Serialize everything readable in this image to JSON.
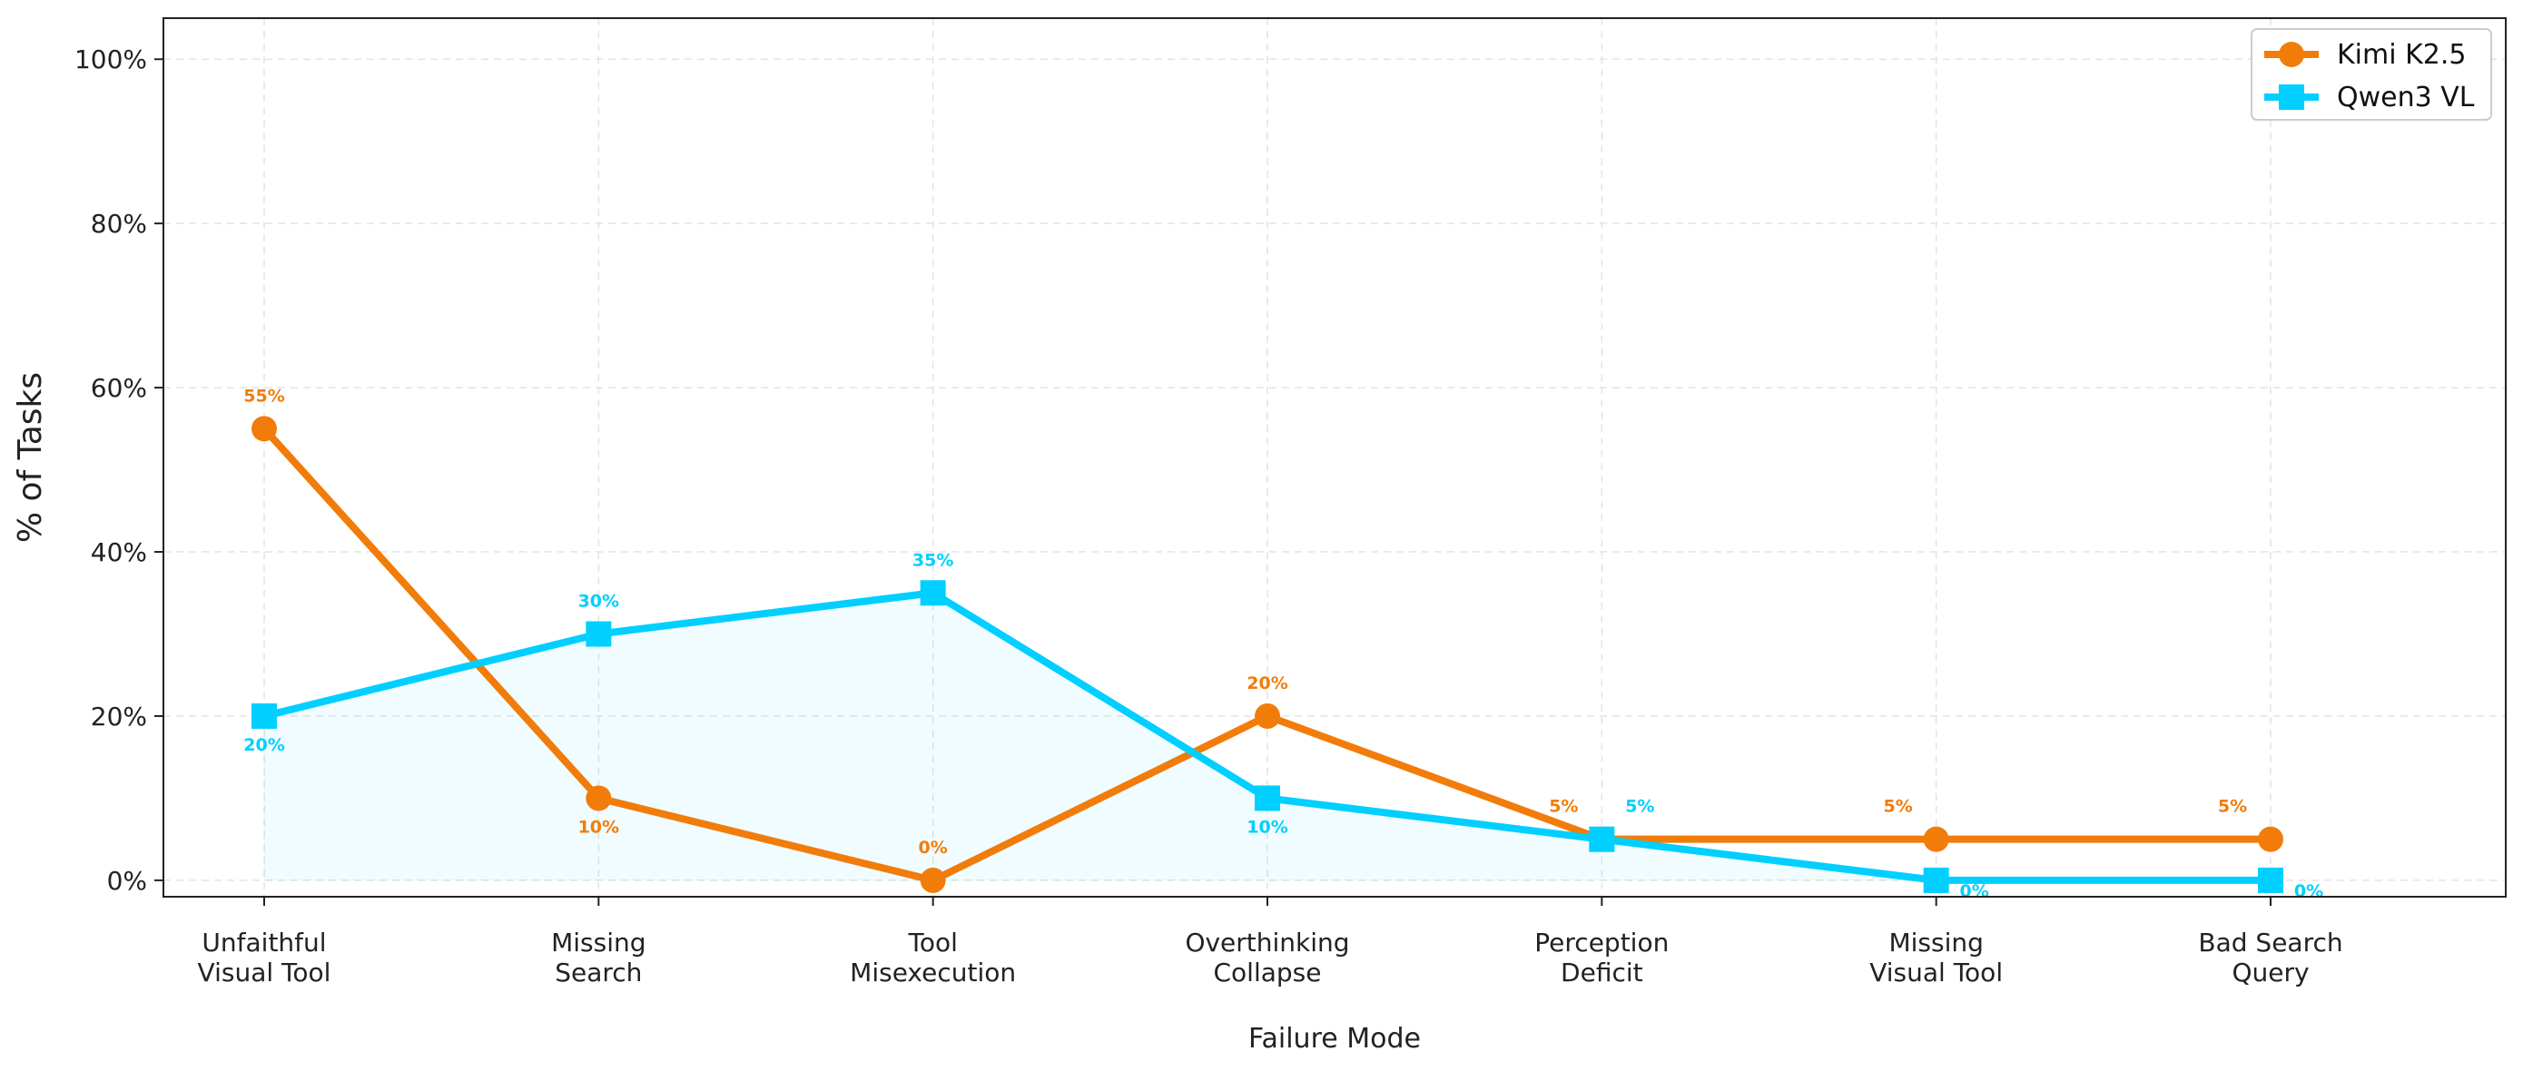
{
  "chart_data": {
    "type": "line",
    "title": "",
    "xlabel": "Failure Mode",
    "ylabel": "% of Tasks",
    "ylim": [
      -2,
      105
    ],
    "yticks": [
      0,
      20,
      40,
      60,
      80,
      100
    ],
    "ytick_labels": [
      "0%",
      "20%",
      "40%",
      "60%",
      "80%",
      "100%"
    ],
    "grid": true,
    "legend_position": "top-right",
    "categories": [
      [
        "Unfaithful",
        "Visual Tool"
      ],
      [
        "Missing",
        "Search"
      ],
      [
        "Tool",
        "Misexecution"
      ],
      [
        "Overthinking",
        "Collapse"
      ],
      [
        "Perception",
        "Deficit"
      ],
      [
        "Missing",
        "Visual Tool"
      ],
      [
        "Bad Search",
        "Query"
      ]
    ],
    "series": [
      {
        "name": "Kimi K2.5",
        "color": "#f27c0a",
        "marker": "circle",
        "values": [
          55,
          10,
          0,
          20,
          5,
          5,
          5
        ],
        "labels": [
          "55%",
          "10%",
          "0%",
          "20%",
          "5%",
          "5%",
          "5%"
        ]
      },
      {
        "name": "Qwen3 VL",
        "color": "#00cfff",
        "marker": "square",
        "values": [
          20,
          30,
          35,
          10,
          5,
          0,
          0
        ],
        "labels": [
          "20%",
          "30%",
          "35%",
          "10%",
          "5%",
          "0%",
          "0%"
        ]
      }
    ]
  }
}
